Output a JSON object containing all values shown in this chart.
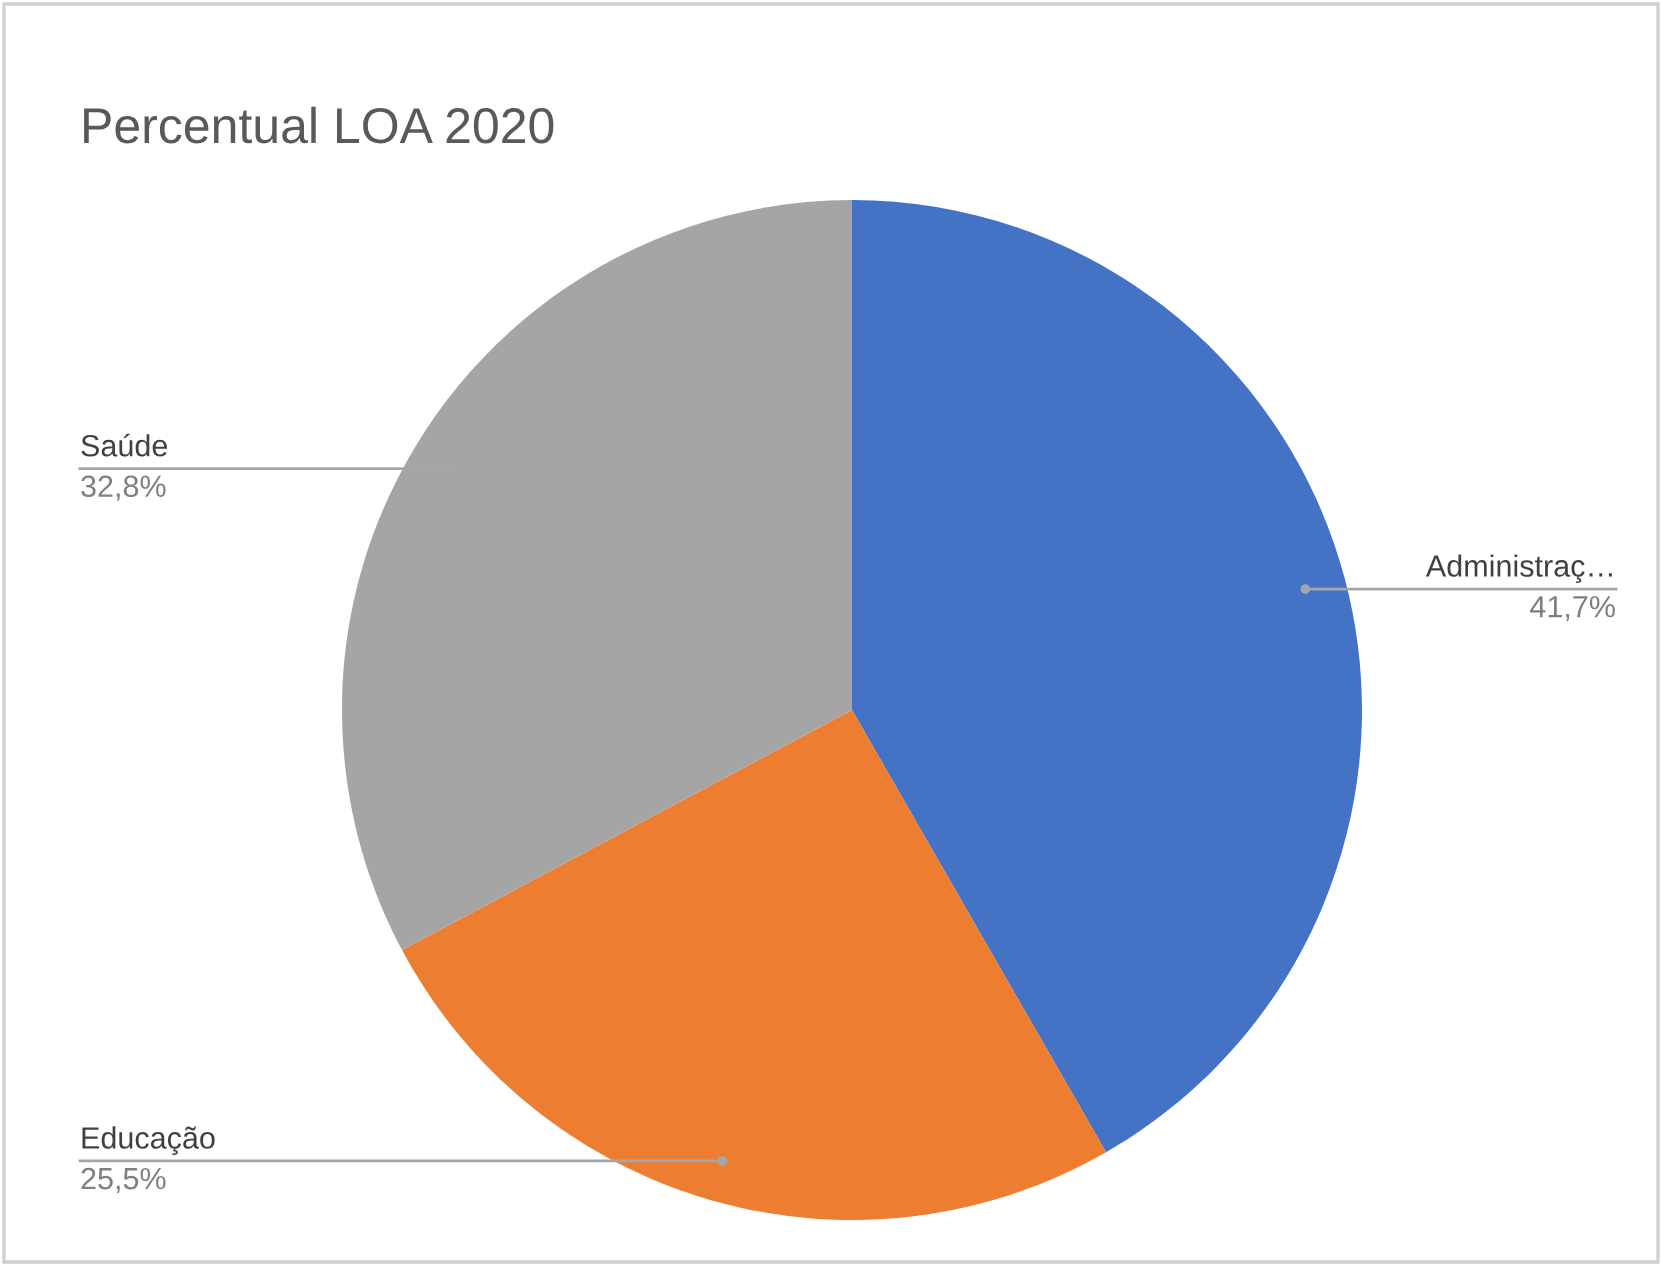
{
  "chart_data": {
    "type": "pie",
    "title": "Percentual LOA 2020",
    "categories": [
      "Administraç…",
      "Educação",
      "Saúde"
    ],
    "values": [
      41.7,
      25.5,
      32.8
    ],
    "colors": [
      "#4472c4",
      "#ed7d31",
      "#a5a5a5"
    ],
    "value_labels": [
      "41,7%",
      "25,5%",
      "32,8%"
    ],
    "legend": false
  }
}
